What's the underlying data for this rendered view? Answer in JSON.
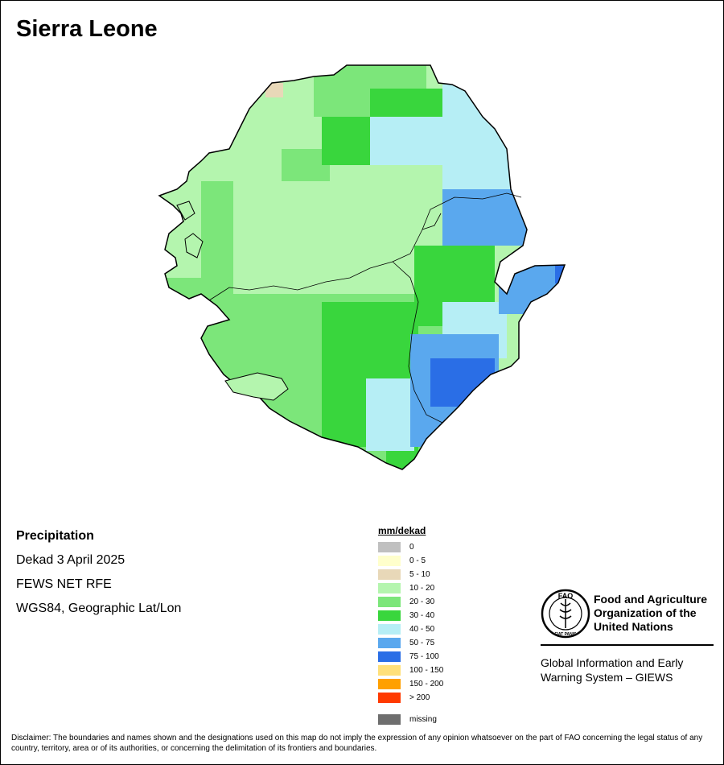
{
  "title": "Sierra Leone",
  "meta": {
    "heading": "Precipitation",
    "period": "Dekad 3 April 2025",
    "source": "FEWS NET RFE",
    "projection": "WGS84, Geographic Lat/Lon"
  },
  "legend": {
    "title": "mm/dekad",
    "classes": [
      {
        "label": "0",
        "color": "#c0c0c0"
      },
      {
        "label": "0 - 5",
        "color": "#ffffcc"
      },
      {
        "label": "5 - 10",
        "color": "#e8d8b8"
      },
      {
        "label": "10 - 20",
        "color": "#b4f5ae"
      },
      {
        "label": "20 - 30",
        "color": "#7ce67a"
      },
      {
        "label": "30 - 40",
        "color": "#39d63d"
      },
      {
        "label": "40 - 50",
        "color": "#b6eef5"
      },
      {
        "label": "50 - 75",
        "color": "#5aa8ee"
      },
      {
        "label": "75 - 100",
        "color": "#2a6ee6"
      },
      {
        "label": "100 - 150",
        "color": "#ffe07a"
      },
      {
        "label": "150 - 200",
        "color": "#ffa000"
      },
      {
        "label": "> 200",
        "color": "#ff3a00"
      }
    ],
    "missing": {
      "label": "missing",
      "color": "#6e6e6e"
    }
  },
  "org": {
    "name_lines": [
      "Food and Agriculture",
      "Organization of the",
      "United Nations"
    ],
    "logo_text": "FAO",
    "logo_ring_text": "FIAT PANIS",
    "giews_lines": [
      "Global Information and Early",
      "Warning System – GIEWS"
    ]
  },
  "disclaimer": "Disclaimer: The boundaries and names shown and the designations used on this map do not imply the expression of any opinion whatsoever on the part of FAO concerning the legal status of any country, territory, area or of its authorities, or concerning the delimitation of its frontiers and boundaries."
}
